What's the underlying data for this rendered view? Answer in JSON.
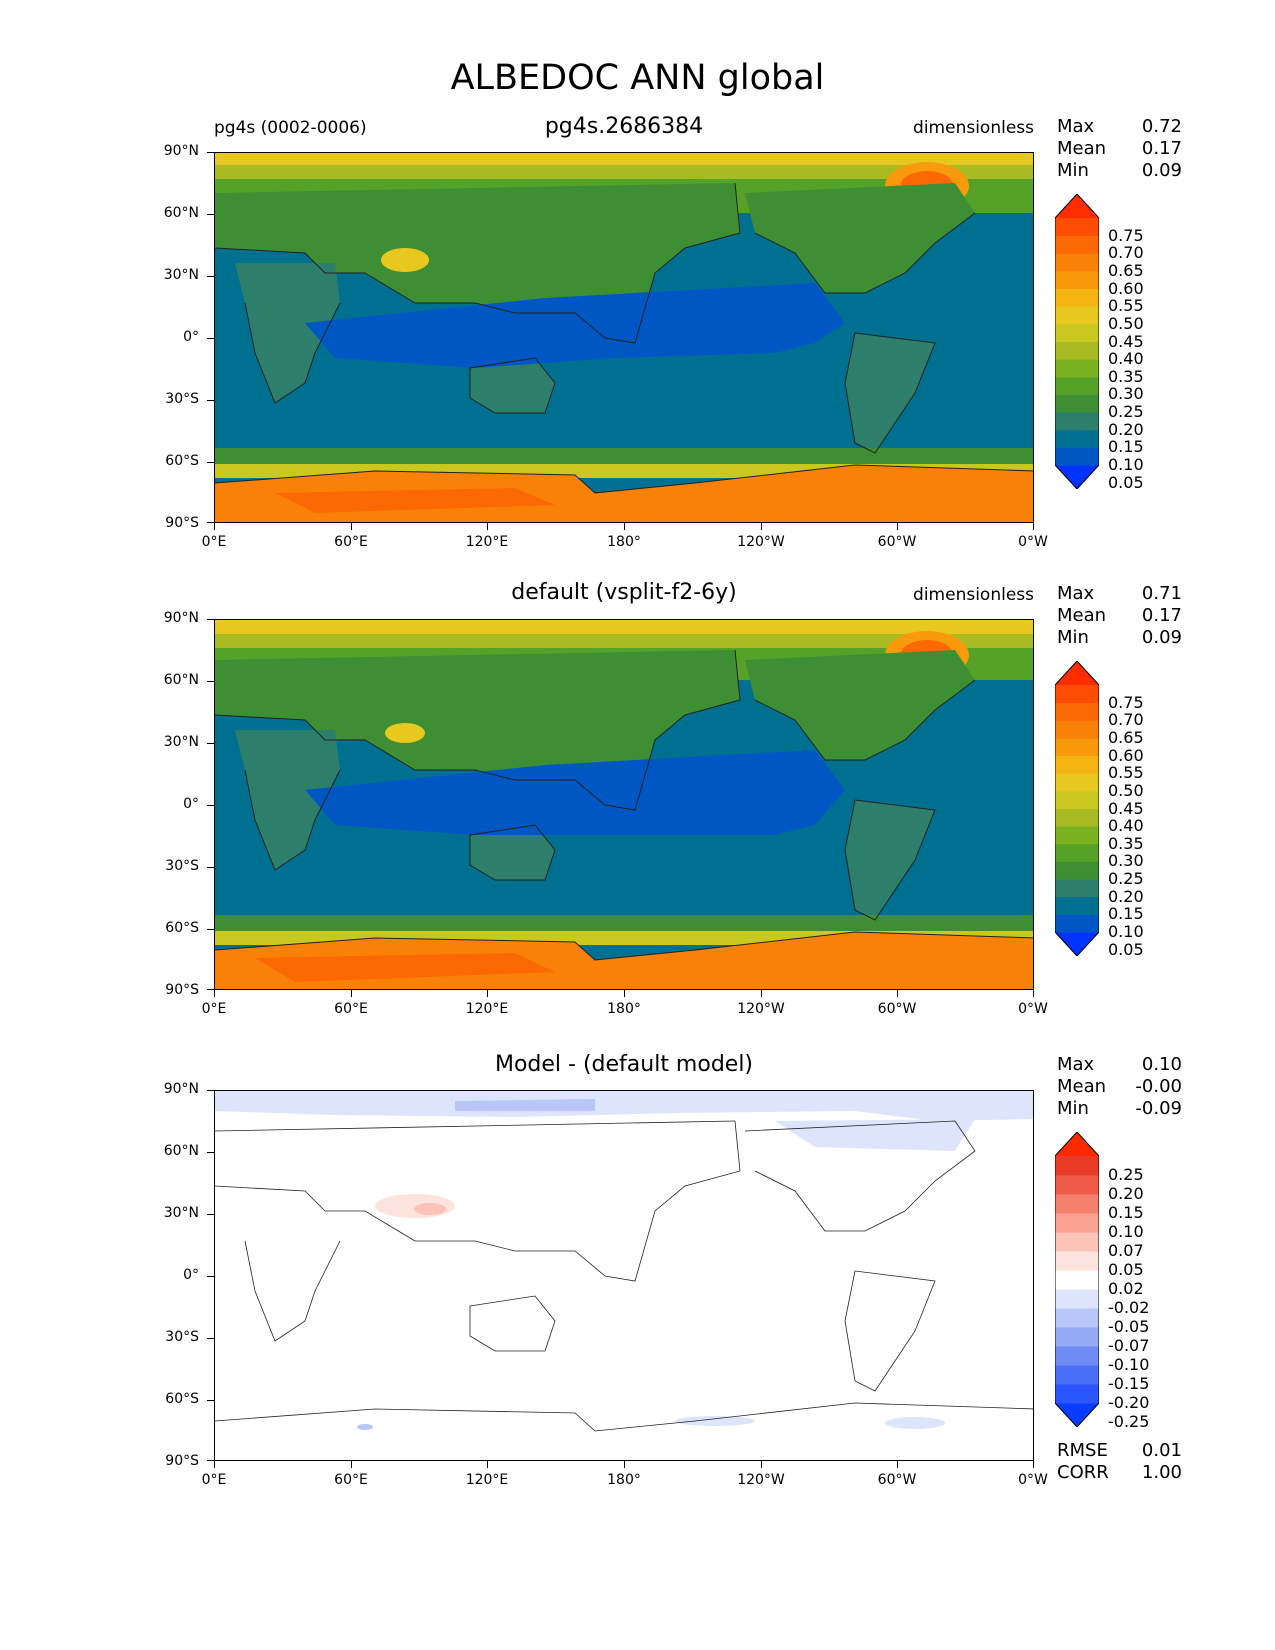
{
  "title": "ALBEDOC ANN global",
  "axes": {
    "y_labels": [
      "90°N",
      "60°N",
      "30°N",
      "0°",
      "30°S",
      "60°S",
      "90°S"
    ],
    "x_labels": [
      "0°E",
      "60°E",
      "120°E",
      "180°",
      "120°W",
      "60°W",
      "0°W"
    ]
  },
  "panels": [
    {
      "left_title": "pg4s (0002-0006)",
      "center_title": "pg4s.2686384",
      "right_title": "dimensionless",
      "stats": [
        {
          "label": "Max",
          "value": "0.72"
        },
        {
          "label": "Mean",
          "value": "0.17"
        },
        {
          "label": "Min",
          "value": "0.09"
        }
      ],
      "colorbar_ticks": [
        "0.75",
        "0.70",
        "0.65",
        "0.60",
        "0.55",
        "0.50",
        "0.45",
        "0.40",
        "0.35",
        "0.30",
        "0.25",
        "0.20",
        "0.15",
        "0.10",
        "0.05"
      ]
    },
    {
      "left_title": "",
      "center_title": "default (vsplit-f2-6y)",
      "right_title": "dimensionless",
      "stats": [
        {
          "label": "Max",
          "value": "0.71"
        },
        {
          "label": "Mean",
          "value": "0.17"
        },
        {
          "label": "Min",
          "value": "0.09"
        }
      ],
      "colorbar_ticks": [
        "0.75",
        "0.70",
        "0.65",
        "0.60",
        "0.55",
        "0.50",
        "0.45",
        "0.40",
        "0.35",
        "0.30",
        "0.25",
        "0.20",
        "0.15",
        "0.10",
        "0.05"
      ]
    },
    {
      "left_title": "",
      "center_title": "Model - (default model)",
      "right_title": "",
      "stats": [
        {
          "label": "Max",
          "value": "0.10"
        },
        {
          "label": "Mean",
          "value": "-0.00"
        },
        {
          "label": "Min",
          "value": "-0.09"
        }
      ],
      "colorbar_ticks": [
        "0.25",
        "0.20",
        "0.15",
        "0.10",
        "0.07",
        "0.05",
        "0.02",
        "-0.02",
        "-0.05",
        "-0.07",
        "-0.10",
        "-0.15",
        "-0.20",
        "-0.25"
      ],
      "footer_stats": [
        {
          "label": "RMSE",
          "value": "0.01"
        },
        {
          "label": "CORR",
          "value": "1.00"
        }
      ]
    }
  ],
  "colors": {
    "seq_bands": [
      "#0033ff",
      "#0057c4",
      "#007090",
      "#2e7e6c",
      "#3e8f34",
      "#56a128",
      "#7cb21f",
      "#a9bb22",
      "#c8c81f",
      "#e6c81e",
      "#f6b412",
      "#f89a0c",
      "#f98108",
      "#fb6905",
      "#fc4d03",
      "#fd2c01"
    ],
    "div_bands": [
      "#0a3cff",
      "#2a55ff",
      "#4a6ef5",
      "#6f8cf5",
      "#93aaf6",
      "#b8c6f8",
      "#dde4fb",
      "#ffffff",
      "#fde3dd",
      "#fbc3b8",
      "#f9a293",
      "#f5806e",
      "#ef5b48",
      "#e83a25",
      "#ff2a00"
    ]
  }
}
